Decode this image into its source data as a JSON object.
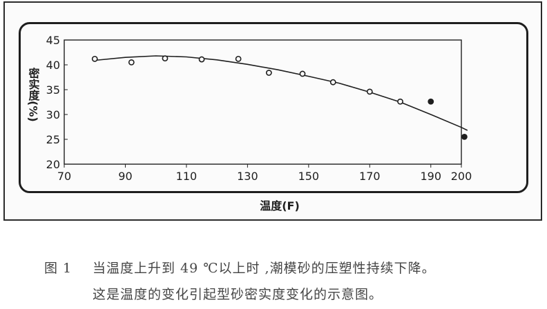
{
  "chart_data": {
    "type": "scatter",
    "xlabel": "温度(F)",
    "ylabel": "密实度(%)",
    "xlim": [
      70,
      200
    ],
    "ylim": [
      20,
      45
    ],
    "x_ticks": [
      "70",
      "90",
      "110",
      "130",
      "150",
      "170",
      "190",
      "200"
    ],
    "y_ticks": [
      "20",
      "25",
      "30",
      "35",
      "40",
      "45"
    ],
    "grid": false,
    "series": [
      {
        "marker": "open-circle",
        "x": [
          80,
          92,
          103,
          115,
          127,
          137,
          148,
          158,
          170,
          180
        ],
        "y": [
          41.2,
          40.5,
          41.3,
          41.1,
          41.2,
          38.4,
          38.2,
          36.5,
          34.6,
          32.6
        ]
      },
      {
        "marker": "filled-circle",
        "x": [
          190,
          201
        ],
        "y": [
          32.6,
          25.5
        ]
      }
    ],
    "trend_line": {
      "x": [
        80,
        90,
        100,
        110,
        120,
        130,
        140,
        150,
        160,
        170,
        180,
        190,
        200,
        202
      ],
      "y": [
        40.9,
        41.5,
        41.8,
        41.6,
        41.0,
        40.1,
        39.0,
        37.7,
        36.3,
        34.5,
        32.5,
        30.0,
        27.4,
        26.8
      ]
    }
  },
  "caption": {
    "number": "图 1",
    "line1": "当温度上升到 49 ℃以上时 ,潮模砂的压塑性持续下降。",
    "line2": "这是温度的变化引起型砂密实度变化的示意图。"
  },
  "colors": {
    "ink": "#1e1e1e",
    "caption": "#444444"
  }
}
